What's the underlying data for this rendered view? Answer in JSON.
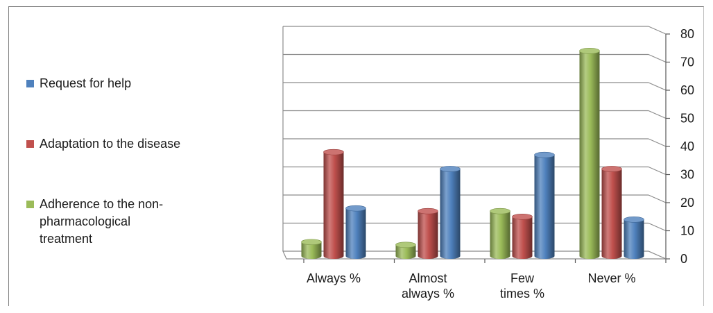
{
  "chart_data": {
    "type": "bar",
    "categories": [
      [
        "Always %"
      ],
      [
        "Almost",
        "always %"
      ],
      [
        "Few",
        "times %"
      ],
      [
        "Never  %"
      ]
    ],
    "series": [
      {
        "name": "Adherence to the non-pharmacological treatment",
        "values": [
          5,
          4,
          16,
          73
        ],
        "color": "#9bbb59"
      },
      {
        "name": "Adaptation to the disease",
        "values": [
          37,
          16,
          14,
          31
        ],
        "color": "#c0504d"
      },
      {
        "name": "Request for help",
        "values": [
          17,
          31,
          36,
          13
        ],
        "color": "#4f81bd"
      }
    ],
    "ylim": [
      0,
      80
    ],
    "yticks": [
      0,
      10,
      20,
      30,
      40,
      50,
      60,
      70,
      80
    ],
    "grid": true,
    "legend_position": "left",
    "style": "3d-cylinder"
  },
  "legend": {
    "items": [
      {
        "label": "Request for help",
        "color": "#4f81bd"
      },
      {
        "label": "Adaptation to the disease",
        "color": "#c0504d"
      },
      {
        "label": " Adherence to the non-\npharmacological\ntreatment",
        "color": "#9bbb59"
      }
    ]
  }
}
